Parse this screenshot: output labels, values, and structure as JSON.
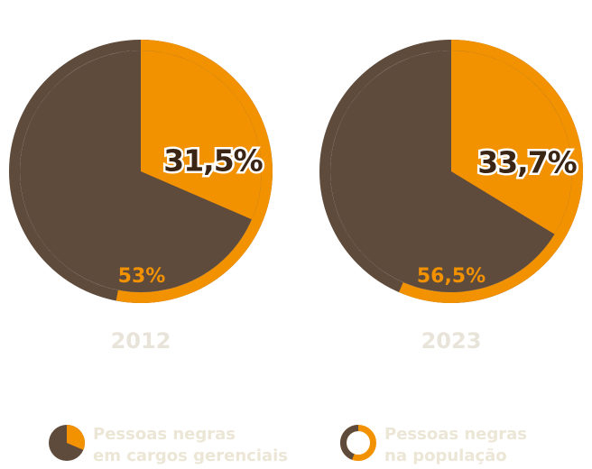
{
  "colors": {
    "orange": "#F39200",
    "brown": "#5E4B3C",
    "dark_text": "#3B2616",
    "year_text": "#E9E4DA",
    "legend_text": "#ECE6D6"
  },
  "chart_data": [
    {
      "type": "pie",
      "year": "2012",
      "inner_pie": {
        "value": 31.5,
        "label": "31,5%"
      },
      "outer_ring": {
        "value": 53,
        "label": "53%"
      }
    },
    {
      "type": "pie",
      "year": "2023",
      "inner_pie": {
        "value": 33.7,
        "label": "33,7%"
      },
      "outer_ring": {
        "value": 56.5,
        "label": "56,5%"
      }
    }
  ],
  "legend": [
    {
      "line1": "Pessoas negras",
      "line2": "em cargos gerenciais",
      "icon": "pie-icon"
    },
    {
      "line1": "Pessoas negras",
      "line2": "na população",
      "icon": "ring-icon"
    }
  ]
}
